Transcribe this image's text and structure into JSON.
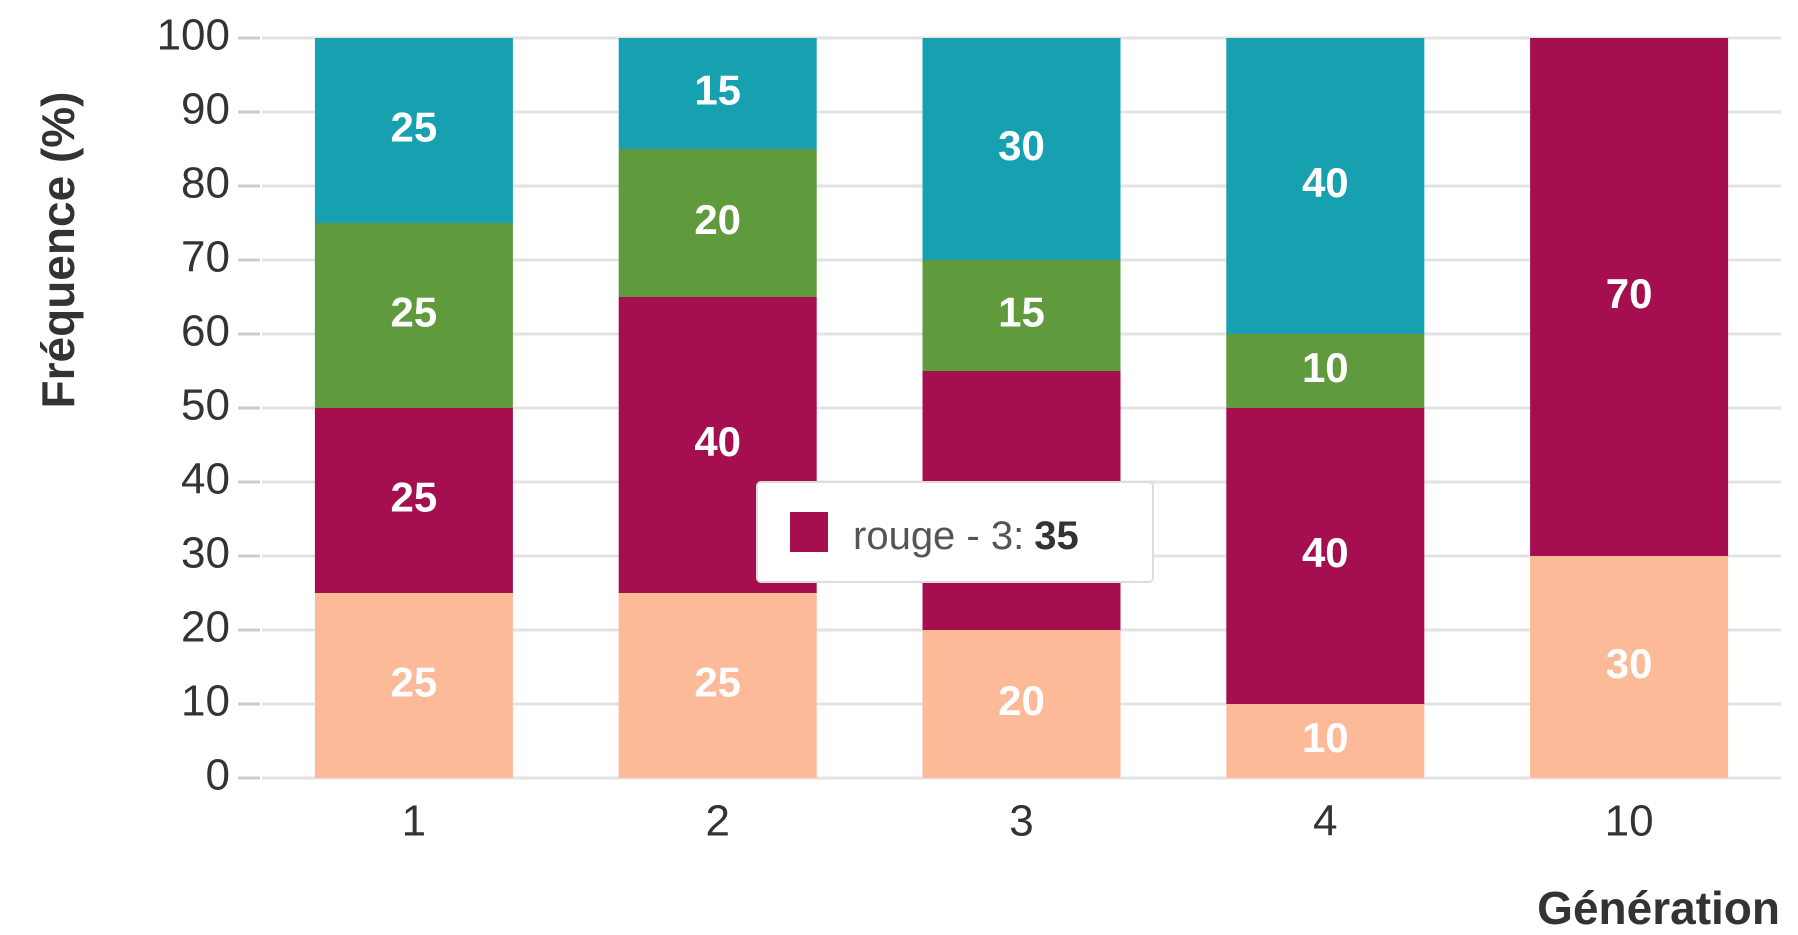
{
  "chart_data": {
    "type": "stacked_bar",
    "x_label": "Génération",
    "y_label": "Fréquence (%)",
    "categories": [
      "1",
      "2",
      "3",
      "4",
      "10"
    ],
    "series": [
      {
        "color": "#fdba99",
        "values": [
          25,
          25,
          20,
          10,
          30
        ]
      },
      {
        "name": "rouge",
        "color": "#a50f50",
        "values": [
          25,
          40,
          35,
          40,
          70
        ]
      },
      {
        "color": "#5f9a3c",
        "values": [
          25,
          20,
          15,
          10,
          0
        ]
      },
      {
        "color": "#17a0b0",
        "values": [
          25,
          15,
          30,
          40,
          0
        ]
      }
    ],
    "ylim": [
      0,
      100
    ],
    "yticks": [
      0,
      10,
      20,
      30,
      40,
      50,
      60,
      70,
      80,
      90,
      100
    ],
    "grid": true,
    "tooltip": {
      "label": "rouge - 3:",
      "value": 35
    }
  }
}
